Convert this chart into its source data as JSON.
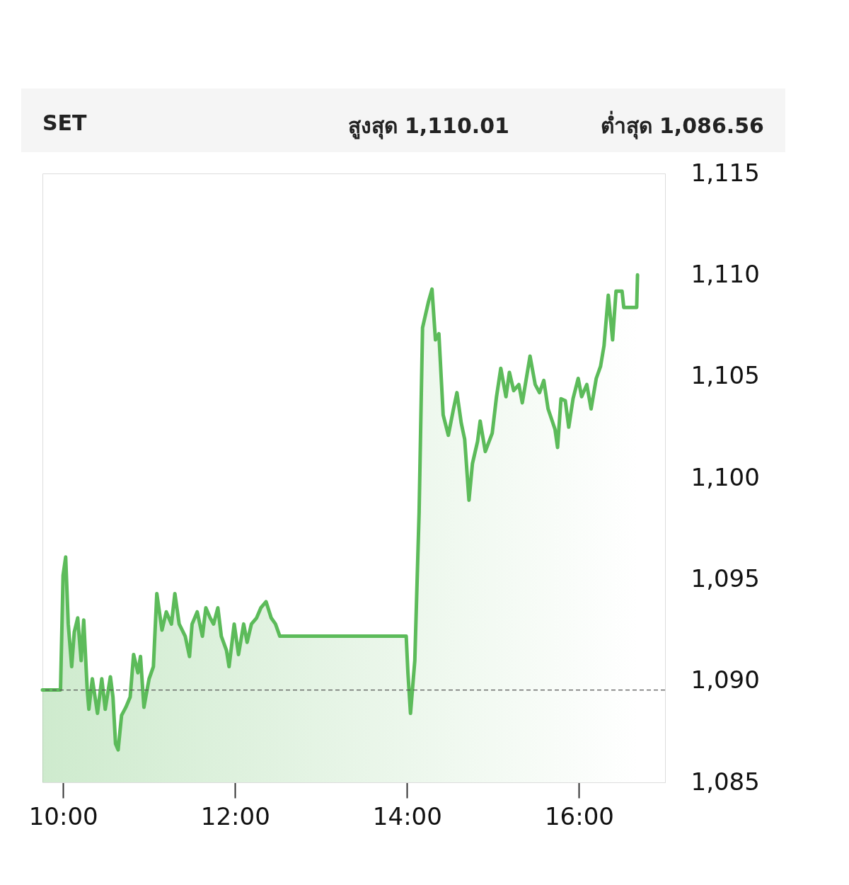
{
  "chart_data": {
    "type": "area",
    "title": "SET",
    "annotations": [
      "สูงสุด  1,110.01",
      "ต่ำสุด  1,086.56"
    ],
    "x": [
      9.76,
      9.97,
      10.0,
      10.03,
      10.06,
      10.1,
      10.13,
      10.17,
      10.21,
      10.24,
      10.28,
      10.3,
      10.34,
      10.4,
      10.45,
      10.49,
      10.55,
      10.58,
      10.61,
      10.64,
      10.68,
      10.73,
      10.78,
      10.82,
      10.87,
      10.9,
      10.94,
      11.0,
      11.05,
      11.09,
      11.15,
      11.2,
      11.26,
      11.3,
      11.35,
      11.42,
      11.47,
      11.5,
      11.56,
      11.62,
      11.66,
      11.71,
      11.75,
      11.8,
      11.84,
      11.9,
      11.93,
      11.99,
      12.04,
      12.1,
      12.14,
      12.19,
      12.25,
      12.3,
      12.36,
      12.42,
      12.47,
      12.52,
      13.99,
      14.01,
      14.04,
      14.09,
      14.14,
      14.18,
      14.25,
      14.29,
      14.33,
      14.37,
      14.42,
      14.48,
      14.54,
      14.58,
      14.63,
      14.67,
      14.72,
      14.76,
      14.82,
      14.85,
      14.91,
      14.99,
      15.04,
      15.09,
      15.15,
      15.19,
      15.24,
      15.3,
      15.34,
      15.43,
      15.49,
      15.54,
      15.59,
      15.64,
      15.72,
      15.75,
      15.79,
      15.84,
      15.88,
      15.93,
      15.99,
      16.03,
      16.09,
      16.14,
      16.2,
      16.25,
      16.29,
      16.34,
      16.39,
      16.43,
      16.5,
      16.52,
      16.67,
      16.68
    ],
    "series": [
      {
        "color": "#5cbb5a",
        "values": [
          1089.55,
          1089.55,
          1095.2,
          1096.1,
          1092.8,
          1090.7,
          1092.4,
          1093.1,
          1091.0,
          1093.0,
          1089.6,
          1088.6,
          1090.1,
          1088.4,
          1090.1,
          1088.6,
          1090.2,
          1089.2,
          1086.9,
          1086.6,
          1088.3,
          1088.7,
          1089.2,
          1091.3,
          1090.4,
          1091.2,
          1088.7,
          1090.1,
          1090.7,
          1094.3,
          1092.5,
          1093.4,
          1092.8,
          1094.3,
          1092.8,
          1092.2,
          1091.2,
          1092.8,
          1093.4,
          1092.2,
          1093.6,
          1093.1,
          1092.8,
          1093.6,
          1092.2,
          1091.5,
          1090.7,
          1092.8,
          1091.3,
          1092.8,
          1091.9,
          1092.8,
          1093.1,
          1093.6,
          1093.9,
          1093.1,
          1092.8,
          1092.2,
          1092.2,
          1090.4,
          1088.4,
          1091.0,
          1098.3,
          1107.4,
          1108.7,
          1109.3,
          1106.8,
          1107.1,
          1103.1,
          1102.1,
          1103.4,
          1104.2,
          1102.7,
          1101.9,
          1098.9,
          1100.7,
          1101.8,
          1102.8,
          1101.3,
          1102.2,
          1104.0,
          1105.4,
          1104.0,
          1105.2,
          1104.3,
          1104.6,
          1103.7,
          1106.0,
          1104.6,
          1104.2,
          1104.8,
          1103.4,
          1102.4,
          1101.5,
          1103.9,
          1103.8,
          1102.5,
          1103.9,
          1104.9,
          1104.0,
          1104.6,
          1103.4,
          1104.9,
          1105.5,
          1106.5,
          1109.0,
          1106.8,
          1109.2,
          1109.2,
          1108.4,
          1108.4,
          1110.0
        ]
      }
    ],
    "xlim": [
      9.76,
      17.0
    ],
    "xticks": [
      {
        "value": 10,
        "label": "10:00"
      },
      {
        "value": 12,
        "label": "12:00"
      },
      {
        "value": 14,
        "label": "14:00"
      },
      {
        "value": 16,
        "label": "16:00"
      }
    ],
    "ylim": [
      1085,
      1115
    ],
    "yticks": [
      {
        "value": 1085,
        "label": "1,085"
      },
      {
        "value": 1090,
        "label": "1,090"
      },
      {
        "value": 1095,
        "label": "1,095"
      },
      {
        "value": 1100,
        "label": "1,100"
      },
      {
        "value": 1105,
        "label": "1,105"
      },
      {
        "value": 1110,
        "label": "1,110"
      },
      {
        "value": 1115,
        "label": "1,115"
      }
    ],
    "ref_lines": [
      {
        "axis": "y",
        "value": 1089.55,
        "color": "#555555",
        "line_style": "dashed"
      }
    ],
    "grid": false,
    "marker": "none",
    "line_style": "solid"
  }
}
